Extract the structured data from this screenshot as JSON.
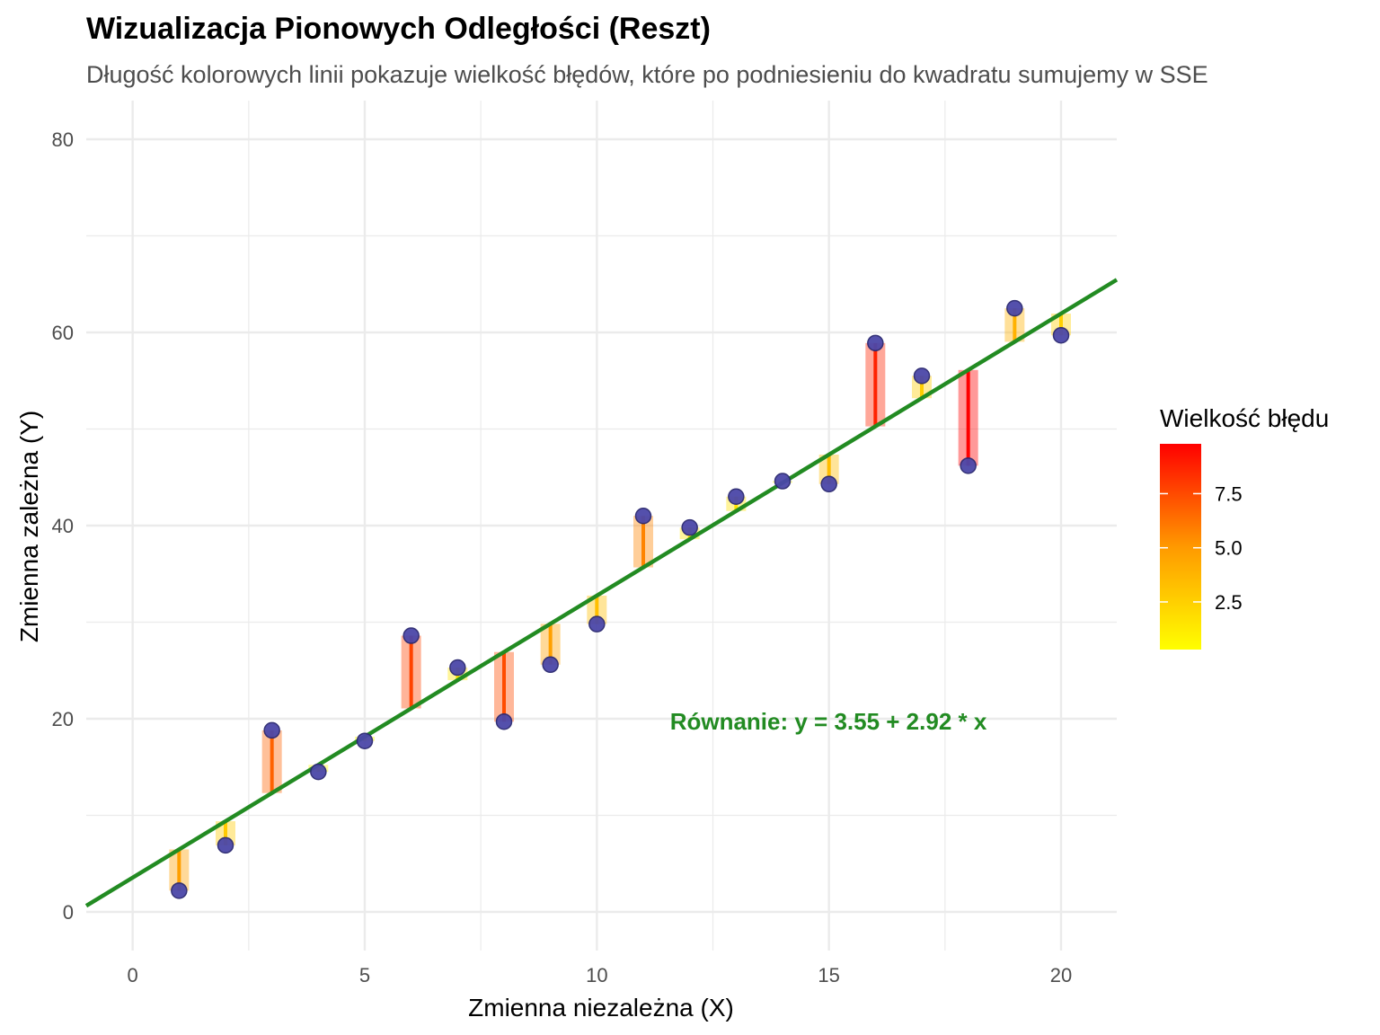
{
  "chart_data": {
    "type": "scatter",
    "title": "Wizualizacja Pionowych Odległości (Reszt)",
    "subtitle": "Długość kolorowych linii pokazuje wielkość błędów, które po podniesieniu do kwadratu sumujemy w SSE",
    "xlabel": "Zmienna niezależna (X)",
    "ylabel": "Zmienna zależna (Y)",
    "xlim": [
      -1,
      21.2
    ],
    "ylim": [
      -4,
      84
    ],
    "xticks": [
      0,
      5,
      10,
      15,
      20
    ],
    "yticks": [
      0,
      20,
      40,
      60,
      80
    ],
    "grid": true,
    "x": [
      1,
      2,
      3,
      4,
      5,
      6,
      7,
      8,
      9,
      10,
      11,
      12,
      13,
      14,
      15,
      16,
      17,
      18,
      19,
      20
    ],
    "y": [
      2.2,
      6.9,
      18.8,
      14.5,
      17.7,
      28.6,
      25.3,
      19.7,
      25.6,
      29.8,
      41.0,
      39.8,
      43.0,
      44.6,
      44.3,
      58.9,
      55.5,
      46.2,
      62.5,
      59.7
    ],
    "regression": {
      "intercept": 3.55,
      "slope": 2.92
    },
    "annotation": "Równanie: y = 3.55 + 2.92 * x",
    "legend": {
      "title": "Wielkość błędu",
      "labels": [
        "7.5",
        "5.0",
        "2.5"
      ],
      "values": [
        7.5,
        5.0,
        2.5
      ],
      "range": [
        0.3,
        9.8
      ],
      "placement": "right"
    },
    "colors": {
      "points": "#4b47a8",
      "point_outline": "#2a2870",
      "regression_line": "#228b22",
      "equation": "#228b22",
      "grid": "#ebebeb",
      "error_low": "#ffff00",
      "error_mid": "#ff8c00",
      "error_high": "#ff0000"
    }
  }
}
